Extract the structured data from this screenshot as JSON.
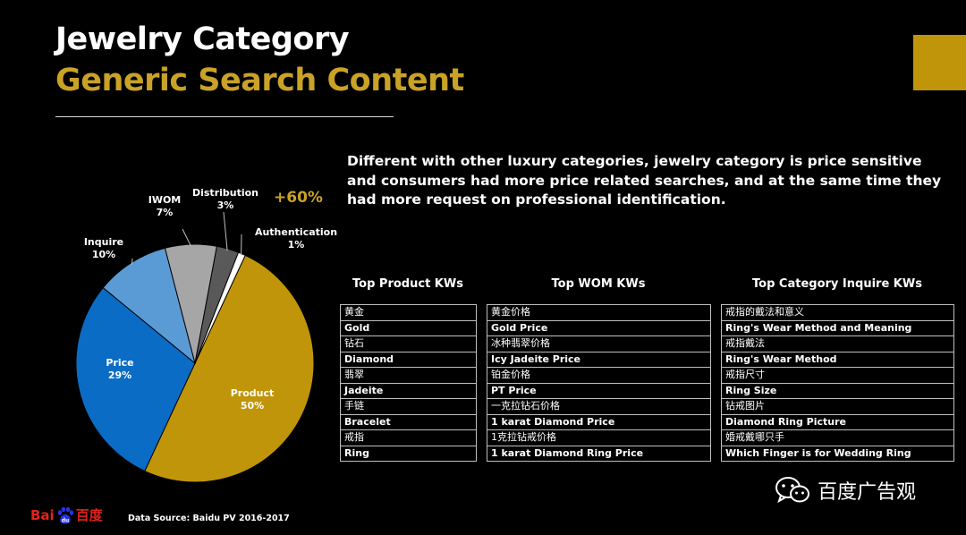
{
  "header": {
    "title": "Jewelry Category",
    "subtitle": "Generic Search Content",
    "intro": "Different with other luxury categories, jewelry category is price sensitive and consumers had more price related searches, and at the same time they had more request on professional identification."
  },
  "colors": {
    "gold": "#C0950A",
    "title_gold": "#C9A227",
    "dark_blue": "#0A6CC4",
    "light_blue": "#5B9BD5",
    "light_gray": "#A6A6A6",
    "dark_gray": "#595959",
    "white": "#FFFFFF",
    "baidu_red": "#E2231A",
    "baidu_blue": "#2932E1"
  },
  "chart_data": {
    "type": "pie",
    "slices": [
      {
        "name": "Product",
        "value": 50,
        "label": "50%",
        "color": "#C0950A"
      },
      {
        "name": "Price",
        "value": 29,
        "label": "29%",
        "color": "#0A6CC4"
      },
      {
        "name": "Inquire",
        "value": 10,
        "label": "10%",
        "color": "#5B9BD5"
      },
      {
        "name": "IWOM",
        "value": 7,
        "label": "7%",
        "color": "#A6A6A6"
      },
      {
        "name": "Distribution",
        "value": 3,
        "label": "3%",
        "color": "#595959"
      },
      {
        "name": "Authentication",
        "value": 1,
        "label": "1%",
        "color": "#FFFFFF"
      }
    ],
    "annotation": "+60%"
  },
  "keywords": {
    "product": {
      "title": "Top Product KWs",
      "rows": [
        "黄金",
        "Gold",
        "钻石",
        "Diamond",
        "翡翠",
        "Jadeite",
        "手链",
        "Bracelet",
        "戒指",
        "Ring"
      ]
    },
    "wom": {
      "title": "Top WOM KWs",
      "rows": [
        "黄金价格",
        "Gold Price",
        "冰种翡翠价格",
        "Icy Jadeite Price",
        "铂金价格",
        "PT Price",
        "一克拉钻石价格",
        "1 karat Diamond Price",
        "1克拉钻戒价格",
        "1 karat Diamond Ring Price"
      ]
    },
    "inquire": {
      "title": "Top Category Inquire KWs",
      "rows": [
        "戒指的戴法和意义",
        "Ring's Wear Method and Meaning",
        "戒指戴法",
        "Ring's Wear Method",
        "戒指尺寸",
        "Ring Size",
        "钻戒图片",
        "Diamond Ring Picture",
        "婚戒戴哪只手",
        "Which Finger is for Wedding Ring"
      ]
    }
  },
  "footer": {
    "source": "Data Source: Baidu PV 2016-2017",
    "logo_left": "Bai",
    "logo_right": "百度",
    "wechat_account": "百度广告观"
  }
}
